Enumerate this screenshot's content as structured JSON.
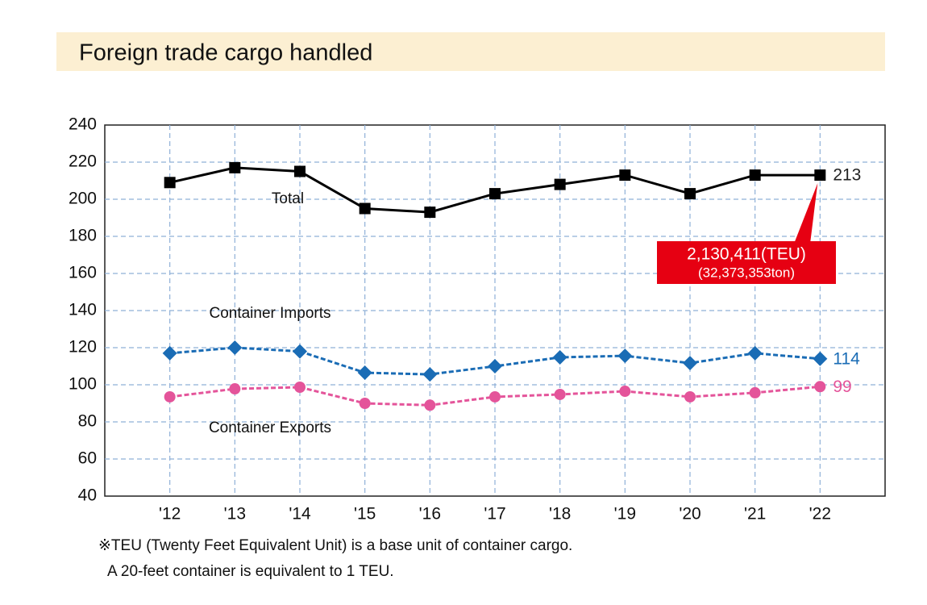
{
  "chart_data": {
    "type": "line",
    "title": "Foreign trade cargo handled",
    "categories": [
      "'12",
      "'13",
      "'14",
      "'15",
      "'16",
      "'17",
      "'18",
      "'19",
      "'20",
      "'21",
      "'22"
    ],
    "series": [
      {
        "name": "Total",
        "color": "#000000",
        "marker": "square",
        "dashed": false,
        "values": [
          209,
          217,
          215,
          195,
          193,
          203,
          208,
          213,
          203,
          213,
          213
        ]
      },
      {
        "name": "Container Imports",
        "color": "#1a6cb5",
        "marker": "diamond",
        "dashed": true,
        "values": [
          117,
          120,
          118,
          106.5,
          105.6,
          110,
          114.8,
          115.6,
          111.7,
          117,
          114
        ]
      },
      {
        "name": "Container Exports",
        "color": "#e4549a",
        "marker": "circle",
        "dashed": true,
        "values": [
          93.5,
          97.8,
          98.7,
          90,
          89,
          93.5,
          94.8,
          96.5,
          93.5,
          95.7,
          99
        ]
      }
    ],
    "ylim": [
      40,
      240
    ],
    "yticks": [
      40,
      60,
      80,
      100,
      120,
      140,
      160,
      180,
      200,
      220,
      240
    ],
    "grid": true,
    "annotation": [
      "2,130,411(TEU)",
      "(32,373,353ton)"
    ],
    "footnote": [
      "※TEU (Twenty Feet Equivalent Unit) is a base unit of container cargo.",
      "A 20-feet container is equivalent to 1 TEU."
    ]
  }
}
